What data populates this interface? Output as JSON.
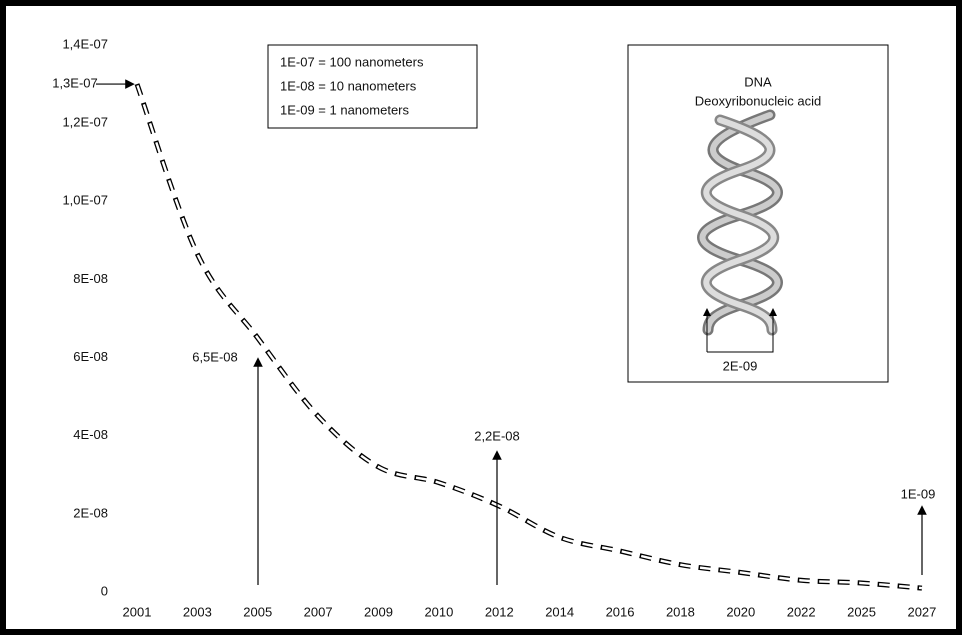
{
  "chart_data": {
    "type": "line",
    "categories": [
      "2001",
      "2003",
      "2005",
      "2007",
      "2009",
      "2010",
      "2012",
      "2014",
      "2016",
      "2018",
      "2020",
      "2022",
      "2025",
      "2027"
    ],
    "values": [
      1.3e-07,
      8.65e-08,
      6.5e-08,
      4.5e-08,
      3.2e-08,
      2.8e-08,
      2.2e-08,
      1.4e-08,
      1.05e-08,
      7e-09,
      5e-09,
      3e-09,
      2.3e-09,
      1e-09
    ],
    "color": "#000000",
    "ylim": [
      0,
      1.4e-07
    ],
    "yticks": [
      0,
      {
        "value": 2e-08,
        "label": "2E-08"
      },
      {
        "value": 4e-08,
        "label": "4E-08"
      },
      {
        "value": 6e-08,
        "label": "6E-08"
      },
      {
        "value": 8e-08,
        "label": "8E-08"
      },
      {
        "value": 1e-07,
        "label": "1,0E-07"
      },
      {
        "value": 1.2e-07,
        "label": "1,2E-07"
      },
      {
        "value": 1.4e-07,
        "label": "1,4E-07"
      }
    ],
    "annotations": [
      "1,3E-07",
      "6,5E-08",
      "2,2E-08",
      "1E-09"
    ],
    "legend_box": [
      "1E-07 = 100 nanometers",
      "1E-08 = 10 nanometers",
      "1E-09 = 1 nanometers"
    ],
    "inset": {
      "title": "DNA",
      "subtitle": "Deoxyribonucleic acid",
      "label": "2E-09"
    }
  }
}
